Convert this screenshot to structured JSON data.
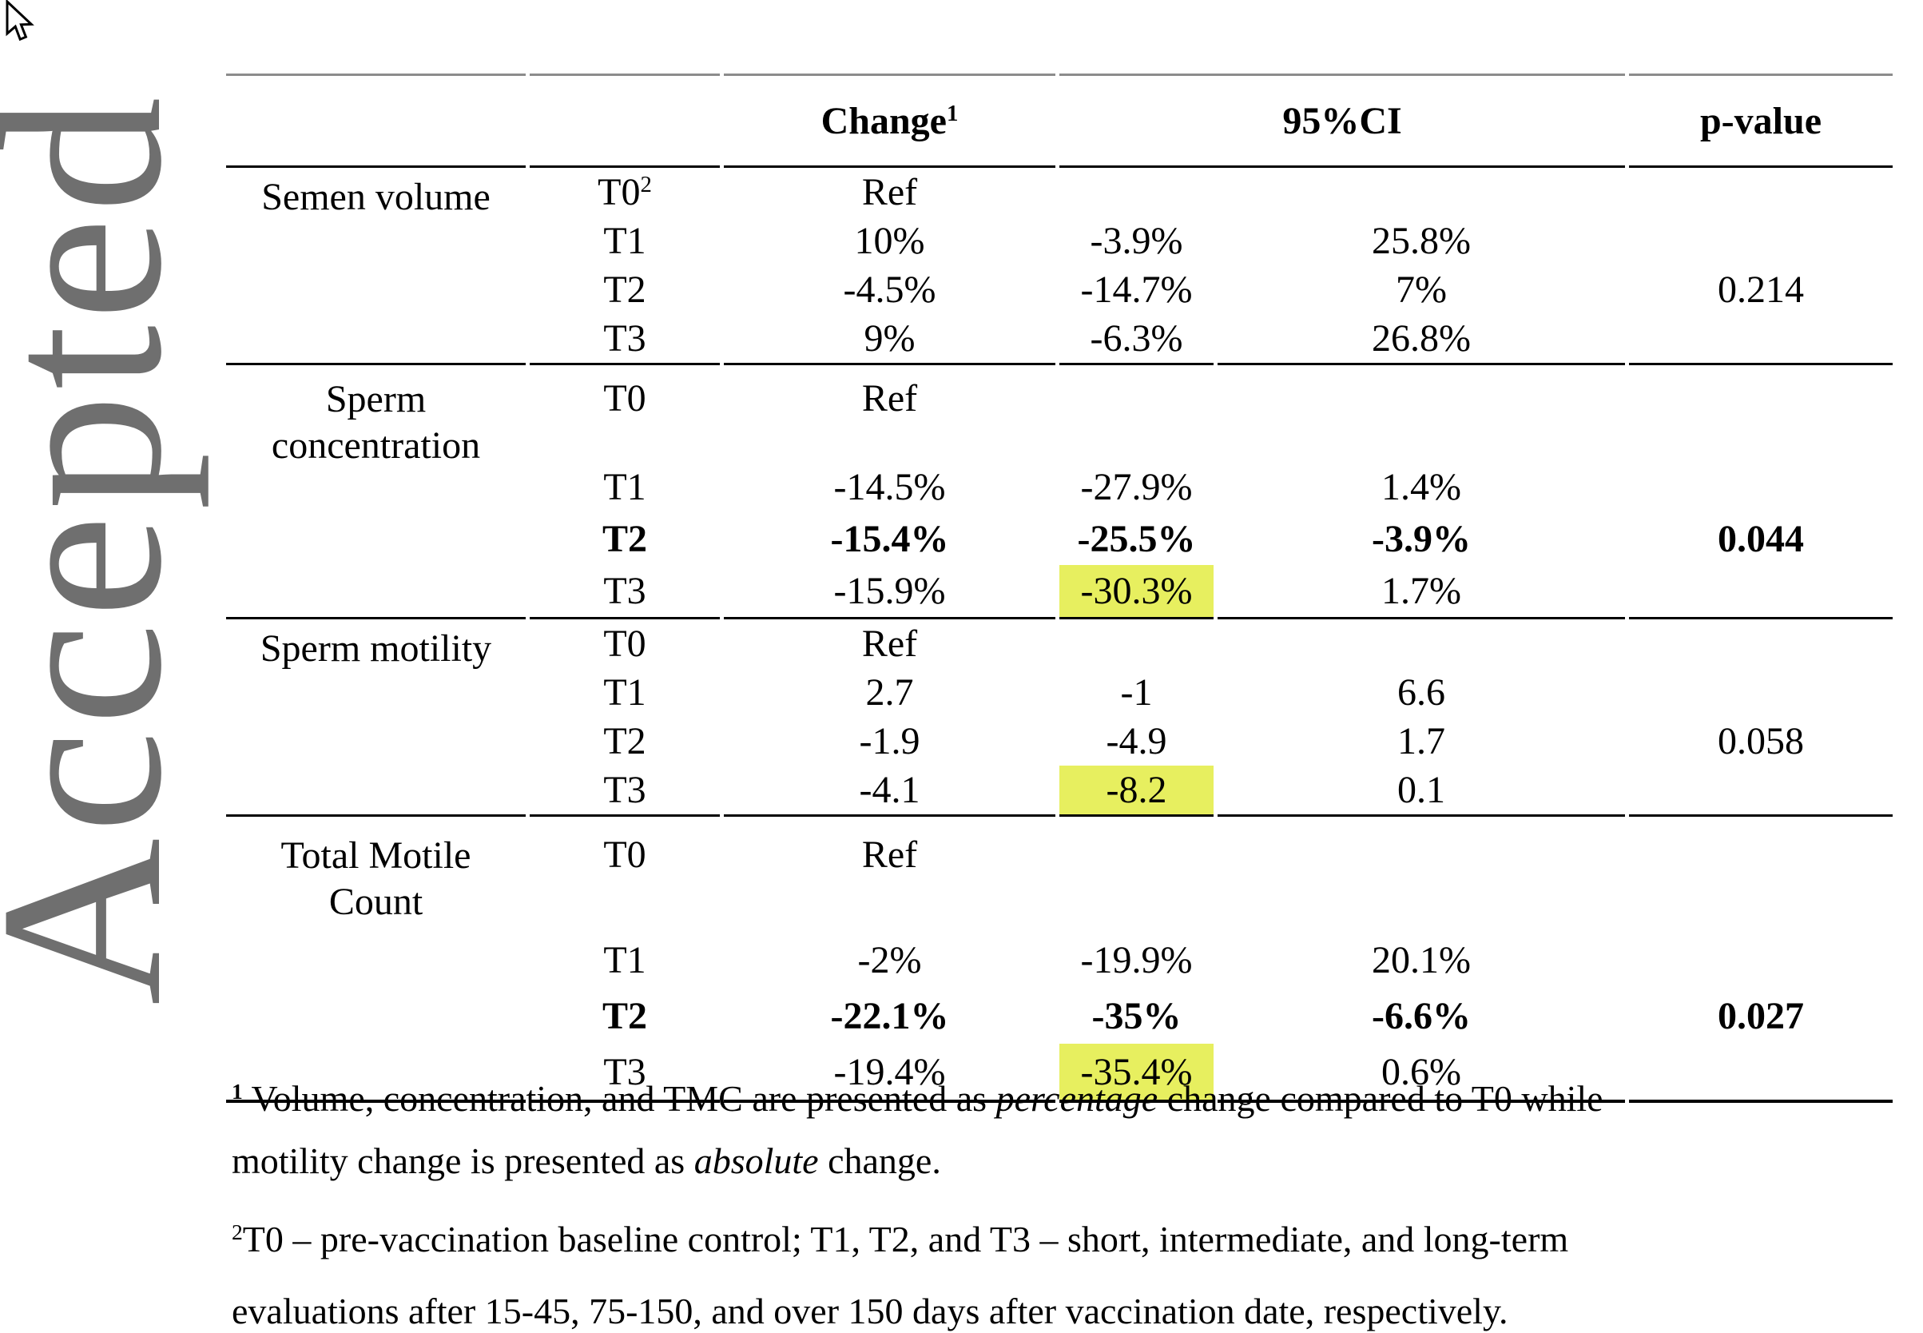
{
  "watermark": "Accepted",
  "colors": {
    "highlight": "#e7ef5f",
    "watermark_gray": "#6f6f6f",
    "rule_top_gray": "#8c8c8c",
    "rule_black": "#000000"
  },
  "icons": {
    "cursor": "mouse-pointer-arrow"
  },
  "table": {
    "headers": {
      "parameter": "",
      "time": "",
      "change": "Change",
      "change_sup": "1",
      "ci": "95%CI",
      "pvalue": "p-value"
    },
    "sections": [
      {
        "parameter_lines": [
          "Semen volume"
        ],
        "rows": [
          {
            "time": "T0",
            "time_sup": "2",
            "change": "Ref",
            "ci_low": "",
            "ci_high": "",
            "p": ""
          },
          {
            "time": "T1",
            "change": "10%",
            "ci_low": "-3.9%",
            "ci_high": "25.8%",
            "p": ""
          },
          {
            "time": "T2",
            "change": "-4.5%",
            "ci_low": "-14.7%",
            "ci_high": "7%",
            "p": "0.214"
          },
          {
            "time": "T3",
            "change": "9%",
            "ci_low": "-6.3%",
            "ci_high": "26.8%",
            "p": ""
          }
        ]
      },
      {
        "parameter_lines": [
          "Sperm",
          "concentration"
        ],
        "rows": [
          {
            "time": "T0",
            "change": "Ref",
            "ci_low": "",
            "ci_high": "",
            "p": ""
          },
          {
            "time": "T1",
            "change": "-14.5%",
            "ci_low": "-27.9%",
            "ci_high": "1.4%",
            "p": ""
          },
          {
            "time": "T2",
            "change": "-15.4%",
            "ci_low": "-25.5%",
            "ci_high": "-3.9%",
            "p": "0.044",
            "bold": true
          },
          {
            "time": "T3",
            "change": "-15.9%",
            "ci_low": "-30.3%",
            "ci_high": "1.7%",
            "p": "",
            "highlight_ci_low": true
          }
        ]
      },
      {
        "parameter_lines": [
          "Sperm motility"
        ],
        "rows": [
          {
            "time": "T0",
            "change": "Ref",
            "ci_low": "",
            "ci_high": "",
            "p": ""
          },
          {
            "time": "T1",
            "change": "2.7",
            "ci_low": "-1",
            "ci_high": "6.6",
            "p": ""
          },
          {
            "time": "T2",
            "change": "-1.9",
            "ci_low": "-4.9",
            "ci_high": "1.7",
            "p": "0.058"
          },
          {
            "time": "T3",
            "change": "-4.1",
            "ci_low": "-8.2",
            "ci_high": "0.1",
            "p": "",
            "highlight_ci_low": true
          }
        ]
      },
      {
        "parameter_lines": [
          "Total Motile",
          "Count"
        ],
        "rows": [
          {
            "time": "T0",
            "change": "Ref",
            "ci_low": "",
            "ci_high": "",
            "p": ""
          },
          {
            "time": "T1",
            "change": "-2%",
            "ci_low": "-19.9%",
            "ci_high": "20.1%",
            "p": ""
          },
          {
            "time": "T2",
            "change": "-22.1%",
            "ci_low": "-35%",
            "ci_high": "-6.6%",
            "p": "0.027",
            "bold": true
          },
          {
            "time": "T3",
            "change": "-19.4%",
            "ci_low": "-35.4%",
            "ci_high": "0.6%",
            "p": "",
            "highlight_ci_low": true
          }
        ]
      }
    ]
  },
  "footnotes": {
    "fn1": {
      "line1": [
        {
          "text": "1",
          "sup": true,
          "bold": true
        },
        {
          "text": " Volume, concentration, and TMC are presented as "
        },
        {
          "text": "percentage",
          "italic": true
        },
        {
          "text": " change compared to T0 while"
        }
      ],
      "line2": [
        {
          "text": "motility change is presented as "
        },
        {
          "text": "absolute",
          "italic": true
        },
        {
          "text": " change."
        }
      ]
    },
    "fn2": {
      "line1": [
        {
          "text": "2",
          "sup": true
        },
        {
          "text": "T0 – pre-vaccination baseline control; T1, T2, and T3 – short, intermediate, and long-term"
        }
      ],
      "line2": [
        {
          "text": "evaluations after 15-45, 75-150, and over 150 days after vaccination date, respectively."
        }
      ]
    }
  }
}
